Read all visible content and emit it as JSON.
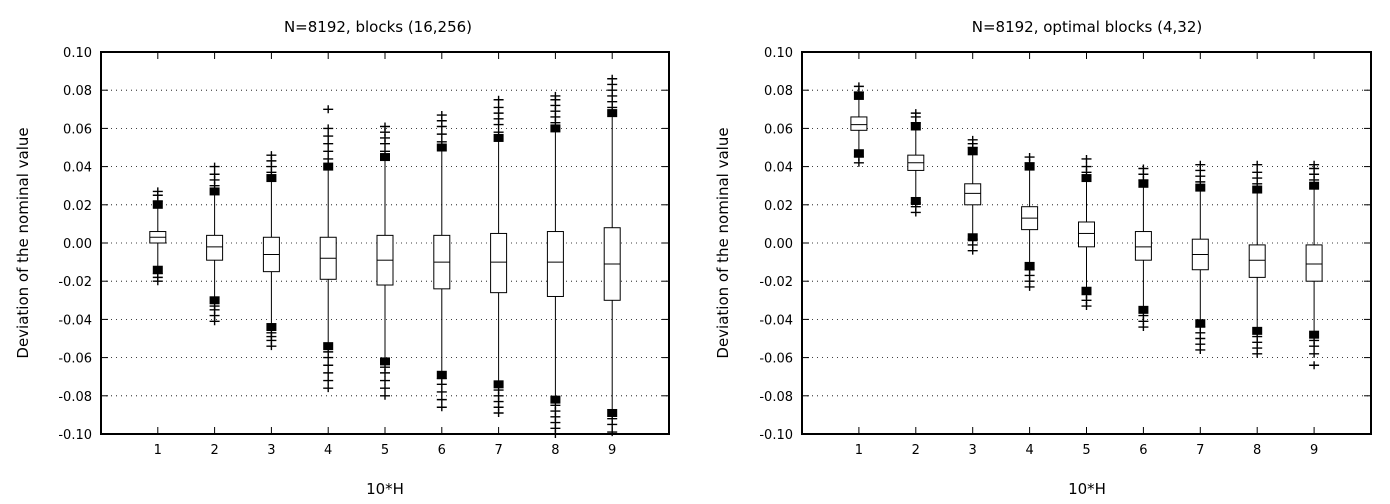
{
  "chart_data": [
    {
      "type": "box",
      "title": "N=8192, blocks (16,256)",
      "xlabel": "10*H",
      "ylabel": "Deviation of the nominal value",
      "xlim": [
        0,
        10
      ],
      "ylim": [
        -0.1,
        0.1
      ],
      "xticks": [
        1,
        2,
        3,
        4,
        5,
        6,
        7,
        8,
        9
      ],
      "yticks": [
        "-0.10",
        "-0.08",
        "-0.06",
        "-0.04",
        "-0.02",
        "0.00",
        "0.02",
        "0.04",
        "0.06",
        "0.08",
        "0.10"
      ],
      "grid": "horizontal dotted",
      "categories": [
        1,
        2,
        3,
        4,
        5,
        6,
        7,
        8,
        9
      ],
      "boxes": [
        {
          "x": 1,
          "q1": 0.0,
          "median": 0.003,
          "q3": 0.006,
          "whisker_low": -0.014,
          "whisker_high": 0.02,
          "outliers": [
            -0.02,
            -0.018,
            -0.016,
            0.022,
            0.025,
            0.027
          ]
        },
        {
          "x": 2,
          "q1": -0.009,
          "median": -0.002,
          "q3": 0.004,
          "whisker_low": -0.03,
          "whisker_high": 0.027,
          "outliers": [
            -0.041,
            -0.038,
            -0.035,
            -0.033,
            0.03,
            0.033,
            0.036,
            0.04
          ]
        },
        {
          "x": 3,
          "q1": -0.015,
          "median": -0.006,
          "q3": 0.003,
          "whisker_low": -0.044,
          "whisker_high": 0.034,
          "outliers": [
            -0.054,
            -0.051,
            -0.049,
            -0.047,
            0.037,
            0.04,
            0.043,
            0.046
          ]
        },
        {
          "x": 4,
          "q1": -0.019,
          "median": -0.008,
          "q3": 0.003,
          "whisker_low": -0.054,
          "whisker_high": 0.04,
          "outliers": [
            -0.076,
            -0.072,
            -0.068,
            -0.064,
            -0.06,
            -0.057,
            0.044,
            0.048,
            0.052,
            0.056,
            0.06,
            0.07
          ]
        },
        {
          "x": 5,
          "q1": -0.022,
          "median": -0.009,
          "q3": 0.004,
          "whisker_low": -0.062,
          "whisker_high": 0.045,
          "outliers": [
            -0.08,
            -0.076,
            -0.072,
            -0.068,
            -0.065,
            0.048,
            0.052,
            0.055,
            0.058,
            0.061
          ]
        },
        {
          "x": 6,
          "q1": -0.024,
          "median": -0.01,
          "q3": 0.004,
          "whisker_low": -0.069,
          "whisker_high": 0.05,
          "outliers": [
            -0.086,
            -0.082,
            -0.078,
            -0.074,
            -0.071,
            0.053,
            0.057,
            0.061,
            0.064,
            0.067
          ]
        },
        {
          "x": 7,
          "q1": -0.026,
          "median": -0.01,
          "q3": 0.005,
          "whisker_low": -0.074,
          "whisker_high": 0.055,
          "outliers": [
            -0.089,
            -0.086,
            -0.083,
            -0.08,
            -0.077,
            0.058,
            0.062,
            0.065,
            0.068,
            0.071,
            0.075
          ]
        },
        {
          "x": 8,
          "q1": -0.028,
          "median": -0.01,
          "q3": 0.006,
          "whisker_low": -0.082,
          "whisker_high": 0.06,
          "outliers": [
            -0.1,
            -0.097,
            -0.094,
            -0.091,
            -0.088,
            -0.085,
            0.063,
            0.066,
            0.069,
            0.072,
            0.075,
            0.077
          ]
        },
        {
          "x": 9,
          "q1": -0.03,
          "median": -0.011,
          "q3": 0.008,
          "whisker_low": -0.089,
          "whisker_high": 0.068,
          "outliers": [
            -0.099,
            -0.095,
            -0.092,
            0.071,
            0.074,
            0.077,
            0.08,
            0.083,
            0.086
          ]
        }
      ]
    },
    {
      "type": "box",
      "title": "N=8192, optimal blocks (4,32)",
      "xlabel": "10*H",
      "ylabel": "Deviation of the nominal value",
      "xlim": [
        0,
        10
      ],
      "ylim": [
        -0.1,
        0.1
      ],
      "xticks": [
        1,
        2,
        3,
        4,
        5,
        6,
        7,
        8,
        9
      ],
      "yticks": [
        "-0.10",
        "-0.08",
        "-0.06",
        "-0.04",
        "-0.02",
        "0.00",
        "0.02",
        "0.04",
        "0.06",
        "0.08",
        "0.10"
      ],
      "grid": "horizontal dotted",
      "categories": [
        1,
        2,
        3,
        4,
        5,
        6,
        7,
        8,
        9
      ],
      "boxes": [
        {
          "x": 1,
          "q1": 0.059,
          "median": 0.062,
          "q3": 0.066,
          "whisker_low": 0.047,
          "whisker_high": 0.077,
          "outliers": [
            0.042,
            0.045,
            0.079,
            0.082
          ]
        },
        {
          "x": 2,
          "q1": 0.038,
          "median": 0.042,
          "q3": 0.046,
          "whisker_low": 0.022,
          "whisker_high": 0.061,
          "outliers": [
            0.016,
            0.019,
            0.021,
            0.063,
            0.066,
            0.068
          ]
        },
        {
          "x": 3,
          "q1": 0.02,
          "median": 0.026,
          "q3": 0.031,
          "whisker_low": 0.003,
          "whisker_high": 0.048,
          "outliers": [
            -0.004,
            -0.001,
            0.002,
            0.05,
            0.052,
            0.054
          ]
        },
        {
          "x": 4,
          "q1": 0.007,
          "median": 0.013,
          "q3": 0.019,
          "whisker_low": -0.012,
          "whisker_high": 0.04,
          "outliers": [
            -0.023,
            -0.02,
            -0.017,
            -0.014,
            0.042,
            0.045
          ]
        },
        {
          "x": 5,
          "q1": -0.002,
          "median": 0.005,
          "q3": 0.011,
          "whisker_low": -0.025,
          "whisker_high": 0.034,
          "outliers": [
            -0.033,
            -0.03,
            -0.027,
            0.037,
            0.04,
            0.044
          ]
        },
        {
          "x": 6,
          "q1": -0.009,
          "median": -0.002,
          "q3": 0.006,
          "whisker_low": -0.035,
          "whisker_high": 0.031,
          "outliers": [
            -0.044,
            -0.041,
            -0.038,
            0.033,
            0.036,
            0.039
          ]
        },
        {
          "x": 7,
          "q1": -0.014,
          "median": -0.006,
          "q3": 0.002,
          "whisker_low": -0.042,
          "whisker_high": 0.029,
          "outliers": [
            -0.056,
            -0.053,
            -0.05,
            -0.047,
            -0.044,
            0.032,
            0.035,
            0.038,
            0.041
          ]
        },
        {
          "x": 8,
          "q1": -0.018,
          "median": -0.009,
          "q3": -0.001,
          "whisker_low": -0.046,
          "whisker_high": 0.028,
          "outliers": [
            -0.058,
            -0.055,
            -0.052,
            -0.049,
            0.031,
            0.034,
            0.037,
            0.041
          ]
        },
        {
          "x": 9,
          "q1": -0.02,
          "median": -0.011,
          "q3": -0.001,
          "whisker_low": -0.048,
          "whisker_high": 0.03,
          "outliers": [
            -0.064,
            -0.058,
            -0.054,
            -0.051,
            0.033,
            0.036,
            0.039,
            0.041
          ]
        }
      ]
    }
  ]
}
